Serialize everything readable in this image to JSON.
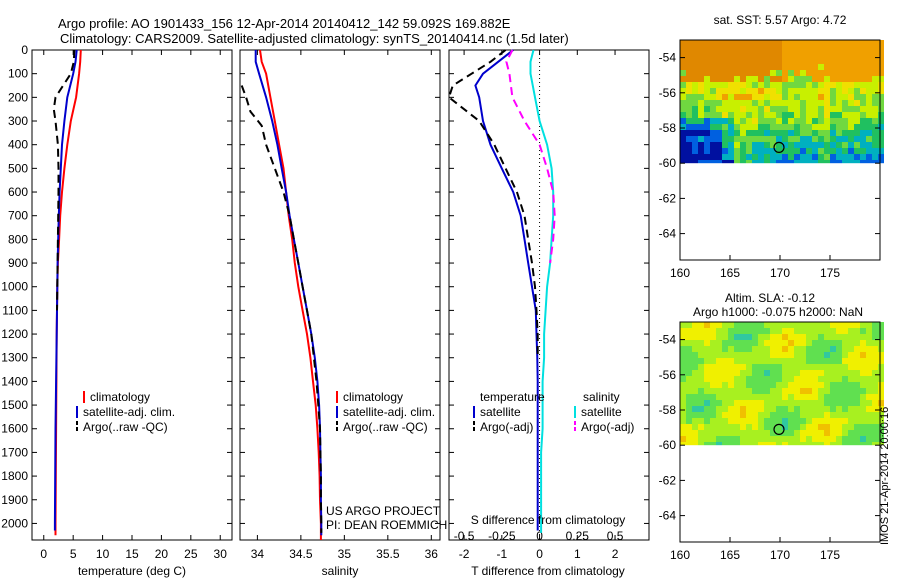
{
  "title_line1": "Argo profile: AO 1901433_156 12-Apr-2014 20140412_142 59.092S 169.882E",
  "title_line2": "Climatology: CARS2009. Satellite-adjusted climatology: synTS_20140414.nc (1.5d later)",
  "colors": {
    "climatology": "#ff0000",
    "satellite": "#0000cc",
    "argo": "#000000",
    "sal_satellite": "#00e0e0",
    "sal_argo": "#ff00ff"
  },
  "chart_data": [
    {
      "type": "line",
      "panel": "temperature",
      "xlabel": "temperature (deg C)",
      "ylabel": "",
      "xlim": [
        -2,
        32
      ],
      "ylim": [
        2070,
        0
      ],
      "xticks": [
        0,
        5,
        10,
        15,
        20,
        25,
        30
      ],
      "yticks": [
        0,
        100,
        200,
        300,
        400,
        500,
        600,
        700,
        800,
        900,
        1000,
        1100,
        1200,
        1300,
        1400,
        1500,
        1600,
        1700,
        1800,
        1900,
        2000
      ],
      "legend": [
        "climatology",
        "satellite-adj. clim.",
        "Argo(..raw -QC)"
      ],
      "series": [
        {
          "name": "climatology",
          "style": "solid",
          "color": "#ff0000",
          "points": [
            [
              6.3,
              0
            ],
            [
              6.2,
              50
            ],
            [
              6.0,
              100
            ],
            [
              5.5,
              200
            ],
            [
              4.6,
              300
            ],
            [
              4.0,
              400
            ],
            [
              3.5,
              500
            ],
            [
              3.1,
              600
            ],
            [
              2.8,
              700
            ],
            [
              2.6,
              800
            ],
            [
              2.4,
              900
            ],
            [
              2.3,
              1000
            ],
            [
              2.2,
              1200
            ],
            [
              2.15,
              1400
            ],
            [
              2.1,
              1600
            ],
            [
              2.05,
              1800
            ],
            [
              2.0,
              2000
            ],
            [
              2.0,
              2050
            ]
          ]
        },
        {
          "name": "satellite-adj. clim.",
          "style": "solid",
          "color": "#0000cc",
          "points": [
            [
              5.6,
              0
            ],
            [
              5.4,
              50
            ],
            [
              5.0,
              100
            ],
            [
              4.0,
              200
            ],
            [
              3.5,
              300
            ],
            [
              3.1,
              400
            ],
            [
              2.9,
              500
            ],
            [
              2.7,
              600
            ],
            [
              2.55,
              700
            ],
            [
              2.45,
              800
            ],
            [
              2.35,
              900
            ],
            [
              2.3,
              1000
            ],
            [
              2.2,
              1200
            ],
            [
              2.1,
              1400
            ],
            [
              2.0,
              1600
            ],
            [
              1.95,
              1800
            ],
            [
              1.9,
              2000
            ],
            [
              1.9,
              2030
            ]
          ]
        },
        {
          "name": "Argo(..raw -QC)",
          "style": "dashed",
          "color": "#000000",
          "points": [
            [
              5.2,
              0
            ],
            [
              5.1,
              50
            ],
            [
              4.6,
              100
            ],
            [
              2.0,
              200
            ],
            [
              1.7,
              250
            ],
            [
              2.0,
              300
            ],
            [
              2.4,
              400
            ],
            [
              2.5,
              500
            ],
            [
              2.5,
              600
            ],
            [
              2.45,
              700
            ],
            [
              2.4,
              800
            ],
            [
              2.35,
              900
            ],
            [
              2.3,
              1000
            ],
            [
              2.25,
              1100
            ]
          ]
        }
      ]
    },
    {
      "type": "line",
      "panel": "salinity",
      "xlabel": "salinity",
      "ylabel": "",
      "xlim": [
        33.8,
        36.1
      ],
      "ylim": [
        2070,
        0
      ],
      "xticks": [
        34,
        34.5,
        35,
        35.5,
        36
      ],
      "xticklabels": [
        "34",
        "34.5",
        "35",
        "35.5",
        "36"
      ],
      "legend": [
        "climatology",
        "satellite-adj. clim.",
        "Argo(..raw -QC)"
      ],
      "annotation": [
        "US ARGO PROJECT",
        "PI: DEAN ROEMMICH"
      ],
      "series": [
        {
          "name": "climatology",
          "style": "solid",
          "color": "#ff0000",
          "points": [
            [
              34.03,
              0
            ],
            [
              34.05,
              50
            ],
            [
              34.1,
              100
            ],
            [
              34.15,
              200
            ],
            [
              34.2,
              300
            ],
            [
              34.25,
              400
            ],
            [
              34.3,
              500
            ],
            [
              34.33,
              600
            ],
            [
              34.36,
              700
            ],
            [
              34.4,
              800
            ],
            [
              34.43,
              900
            ],
            [
              34.47,
              1000
            ],
            [
              34.52,
              1100
            ],
            [
              34.57,
              1200
            ],
            [
              34.61,
              1300
            ],
            [
              34.64,
              1400
            ],
            [
              34.67,
              1500
            ],
            [
              34.69,
              1600
            ],
            [
              34.705,
              1700
            ],
            [
              34.715,
              1800
            ],
            [
              34.72,
              1900
            ],
            [
              34.73,
              2000
            ],
            [
              34.73,
              2070
            ]
          ]
        },
        {
          "name": "satellite-adj. clim.",
          "style": "solid",
          "color": "#0000cc",
          "points": [
            [
              33.98,
              0
            ],
            [
              33.98,
              50
            ],
            [
              34.02,
              100
            ],
            [
              34.1,
              200
            ],
            [
              34.17,
              300
            ],
            [
              34.23,
              400
            ],
            [
              34.28,
              500
            ],
            [
              34.33,
              600
            ],
            [
              34.37,
              700
            ],
            [
              34.42,
              800
            ],
            [
              34.47,
              900
            ],
            [
              34.52,
              1000
            ],
            [
              34.57,
              1100
            ],
            [
              34.62,
              1200
            ],
            [
              34.66,
              1300
            ],
            [
              34.69,
              1400
            ],
            [
              34.71,
              1500
            ],
            [
              34.72,
              1600
            ],
            [
              34.725,
              1700
            ],
            [
              34.73,
              1800
            ],
            [
              34.73,
              1900
            ],
            [
              34.735,
              2000
            ],
            [
              34.735,
              2050
            ]
          ]
        },
        {
          "name": "Argo(..raw -QC)",
          "style": "dashed",
          "color": "#000000",
          "points": [
            [
              33.82,
              150
            ],
            [
              33.87,
              200
            ],
            [
              33.92,
              260
            ],
            [
              34.05,
              320
            ],
            [
              34.1,
              400
            ],
            [
              34.2,
              500
            ],
            [
              34.3,
              600
            ],
            [
              34.37,
              700
            ],
            [
              34.42,
              800
            ],
            [
              34.47,
              900
            ],
            [
              34.52,
              1000
            ],
            [
              34.57,
              1100
            ],
            [
              34.62,
              1200
            ],
            [
              34.65,
              1300
            ],
            [
              34.68,
              1400
            ],
            [
              34.7,
              1500
            ],
            [
              34.72,
              1600
            ],
            [
              34.725,
              1700
            ],
            [
              34.73,
              1800
            ],
            [
              34.73,
              1900
            ],
            [
              34.735,
              2000
            ],
            [
              34.735,
              2040
            ]
          ]
        }
      ]
    },
    {
      "type": "line",
      "panel": "differences",
      "xlabel": "T difference from climatology",
      "xlabel_top": "S difference from climatology",
      "xlim": [
        -2.4,
        2.9
      ],
      "ylim": [
        2070,
        0
      ],
      "xticks": [
        -2,
        -1,
        0,
        1,
        2
      ],
      "xticks_S": [
        -0.5,
        -0.25,
        0,
        0.25,
        0.5
      ],
      "xticklabels_S": [
        "-0.5",
        "-0.25",
        "0",
        "0.25",
        "0.5"
      ],
      "legend_groups": [
        "temperature",
        "salinity"
      ],
      "legend": [
        "satellite",
        "Argo(-adj)",
        "satellite",
        "Argo(-adj)"
      ],
      "series": [
        {
          "name": "satellite",
          "group": "temperature",
          "style": "solid",
          "color": "#0000cc",
          "points": [
            [
              -0.7,
              0
            ],
            [
              -1.5,
              100
            ],
            [
              -1.7,
              150
            ],
            [
              -1.6,
              200
            ],
            [
              -1.5,
              300
            ],
            [
              -1.3,
              400
            ],
            [
              -1.0,
              500
            ],
            [
              -0.7,
              600
            ],
            [
              -0.5,
              700
            ],
            [
              -0.4,
              800
            ],
            [
              -0.3,
              900
            ],
            [
              -0.2,
              1000
            ],
            [
              -0.1,
              1100
            ],
            [
              -0.08,
              1200
            ],
            [
              -0.06,
              1300
            ],
            [
              -0.05,
              1400
            ],
            [
              -0.05,
              1600
            ],
            [
              -0.05,
              1800
            ],
            [
              -0.05,
              2000
            ],
            [
              -0.05,
              2030
            ]
          ]
        },
        {
          "name": "Argo(-adj)",
          "group": "temperature",
          "style": "dashed",
          "color": "#000000",
          "points": [
            [
              -0.9,
              0
            ],
            [
              -1.3,
              50
            ],
            [
              -1.8,
              100
            ],
            [
              -2.3,
              150
            ],
            [
              -2.4,
              200
            ],
            [
              -2.0,
              250
            ],
            [
              -1.6,
              300
            ],
            [
              -1.2,
              400
            ],
            [
              -0.9,
              500
            ],
            [
              -0.6,
              600
            ],
            [
              -0.4,
              700
            ],
            [
              -0.3,
              800
            ],
            [
              -0.2,
              900
            ],
            [
              -0.12,
              1000
            ],
            [
              -0.08,
              1100
            ],
            [
              -0.05,
              1200
            ],
            [
              -0.05,
              1300
            ]
          ]
        },
        {
          "name": "satellite",
          "group": "salinity",
          "style": "solid",
          "color": "#00e0e0",
          "points": [
            [
              -0.04,
              0
            ],
            [
              -0.06,
              50
            ],
            [
              -0.06,
              100
            ],
            [
              -0.03,
              200
            ],
            [
              0.0,
              300
            ],
            [
              0.05,
              400
            ],
            [
              0.08,
              500
            ],
            [
              0.09,
              600
            ],
            [
              0.09,
              700
            ],
            [
              0.08,
              800
            ],
            [
              0.07,
              900
            ],
            [
              0.05,
              1000
            ],
            [
              0.04,
              1100
            ],
            [
              0.03,
              1200
            ],
            [
              0.03,
              1300
            ],
            [
              0.02,
              1400
            ],
            [
              0.02,
              1500
            ],
            [
              0.02,
              1600
            ],
            [
              0.01,
              1700
            ],
            [
              0.01,
              1800
            ],
            [
              0.01,
              1900
            ],
            [
              0.01,
              2000
            ],
            [
              0.01,
              2040
            ]
          ]
        },
        {
          "name": "Argo(-adj)",
          "group": "salinity",
          "style": "dashed",
          "color": "#ff00ff",
          "points": [
            [
              -0.18,
              0
            ],
            [
              -0.22,
              50
            ],
            [
              -0.2,
              100
            ],
            [
              -0.18,
              200
            ],
            [
              -0.1,
              300
            ],
            [
              0.0,
              400
            ],
            [
              0.05,
              500
            ],
            [
              0.09,
              600
            ],
            [
              0.1,
              700
            ],
            [
              0.09,
              800
            ],
            [
              0.07,
              900
            ]
          ]
        }
      ]
    },
    {
      "type": "heatmap",
      "panel": "sst_map",
      "title": "sat. SST: 5.57  Argo: 4.72",
      "xlim": [
        160,
        180
      ],
      "ylim": [
        -65.5,
        -53
      ],
      "xticks": [
        160,
        165,
        170,
        175
      ],
      "yticks": [
        -54,
        -56,
        -58,
        -60,
        -62,
        -64
      ],
      "marker": [
        169.9,
        -59.1
      ]
    },
    {
      "type": "heatmap",
      "panel": "sla_map",
      "title_line1": "Altim. SLA: -0.12",
      "title_line2": "Argo h1000: -0.075  h2000: NaN",
      "xlim": [
        160,
        180
      ],
      "ylim": [
        -65.5,
        -53
      ],
      "xticks": [
        160,
        165,
        170,
        175
      ],
      "yticks": [
        -54,
        -56,
        -58,
        -60,
        -62,
        -64
      ],
      "marker": [
        169.9,
        -59.1
      ]
    }
  ],
  "footer_vertical": "IMOS 21-Apr-2014 20:00:16"
}
